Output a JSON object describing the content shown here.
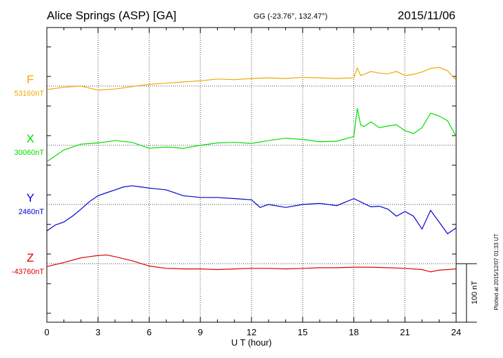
{
  "header": {
    "station": "Alice Springs (ASP)  [GA]",
    "coords": "GG (-23.76°, 132.47°)",
    "date": "2015/11/06"
  },
  "footer": {
    "plotted": "Plotted at 2015/12/07 01:33 UT"
  },
  "colors": {
    "F": "#f0a800",
    "X": "#00dd00",
    "Y": "#0000cc",
    "Z": "#dd0000"
  },
  "chart_data": {
    "type": "line",
    "xlabel": "U T (hour)",
    "xlim": [
      0,
      24
    ],
    "xticks": [
      "0",
      "3",
      "6",
      "9",
      "12",
      "15",
      "18",
      "21",
      "24"
    ],
    "scale_label": "100 nT",
    "series": [
      {
        "name": "F",
        "baseline": "53160nT",
        "x": [
          0,
          1,
          2,
          3,
          4,
          5,
          6,
          7,
          8,
          9,
          10,
          11,
          12,
          13,
          14,
          15,
          16,
          17,
          18,
          18.2,
          18.4,
          18.6,
          19,
          19.5,
          20,
          20.5,
          21,
          21.5,
          22,
          22.5,
          23,
          23.5,
          24
        ],
        "values": [
          -6,
          -2,
          0,
          -7,
          -5,
          -1,
          3,
          5,
          7,
          9,
          12,
          11,
          13,
          14,
          13,
          15,
          14,
          13,
          14,
          31,
          18,
          20,
          25,
          22,
          21,
          25,
          18,
          20,
          24,
          30,
          32,
          26,
          10
        ]
      },
      {
        "name": "X",
        "baseline": "30060nT",
        "x": [
          0,
          1,
          2,
          3,
          4,
          5,
          6,
          7,
          8,
          9,
          10,
          11,
          12,
          13,
          14,
          15,
          16,
          17,
          18,
          18.2,
          18.4,
          18.6,
          19,
          19.5,
          20,
          20.5,
          21,
          21.5,
          22,
          22.5,
          23,
          23.5,
          24
        ],
        "values": [
          -28,
          -8,
          2,
          4,
          8,
          5,
          -5,
          -3,
          -5,
          0,
          4,
          5,
          3,
          8,
          12,
          10,
          6,
          7,
          15,
          63,
          35,
          32,
          40,
          30,
          33,
          35,
          25,
          20,
          30,
          55,
          50,
          42,
          15
        ]
      },
      {
        "name": "Y",
        "baseline": "2460nT",
        "x": [
          0,
          0.5,
          1,
          1.5,
          2,
          2.5,
          3,
          3.5,
          4,
          4.5,
          5,
          5.5,
          6,
          7,
          8,
          9,
          10,
          11,
          12,
          12.5,
          13,
          14,
          15,
          16,
          17,
          18,
          18.5,
          19,
          19.5,
          20,
          20.5,
          21,
          21.5,
          22,
          22.5,
          23,
          23.5,
          24
        ],
        "values": [
          -45,
          -35,
          -30,
          -20,
          -8,
          5,
          15,
          20,
          25,
          30,
          32,
          30,
          28,
          25,
          15,
          12,
          12,
          10,
          8,
          -5,
          0,
          -5,
          0,
          2,
          -2,
          10,
          3,
          -4,
          -3,
          -8,
          -20,
          -12,
          -20,
          -42,
          -10,
          -30,
          -50,
          -40
        ]
      },
      {
        "name": "Z",
        "baseline": "-43760nT",
        "x": [
          0,
          1,
          2,
          3,
          3.5,
          4,
          5,
          6,
          7,
          8,
          9,
          10,
          11,
          12,
          13,
          14,
          15,
          16,
          17,
          18,
          19,
          20,
          21,
          22,
          22.5,
          23,
          23.5,
          24
        ],
        "values": [
          -5,
          2,
          10,
          14,
          15,
          12,
          5,
          -4,
          -8,
          -9,
          -9,
          -10,
          -9,
          -8,
          -8,
          -9,
          -8,
          -7,
          -7,
          -6,
          -6,
          -7,
          -8,
          -10,
          -14,
          -11,
          -10,
          -9
        ]
      }
    ]
  }
}
